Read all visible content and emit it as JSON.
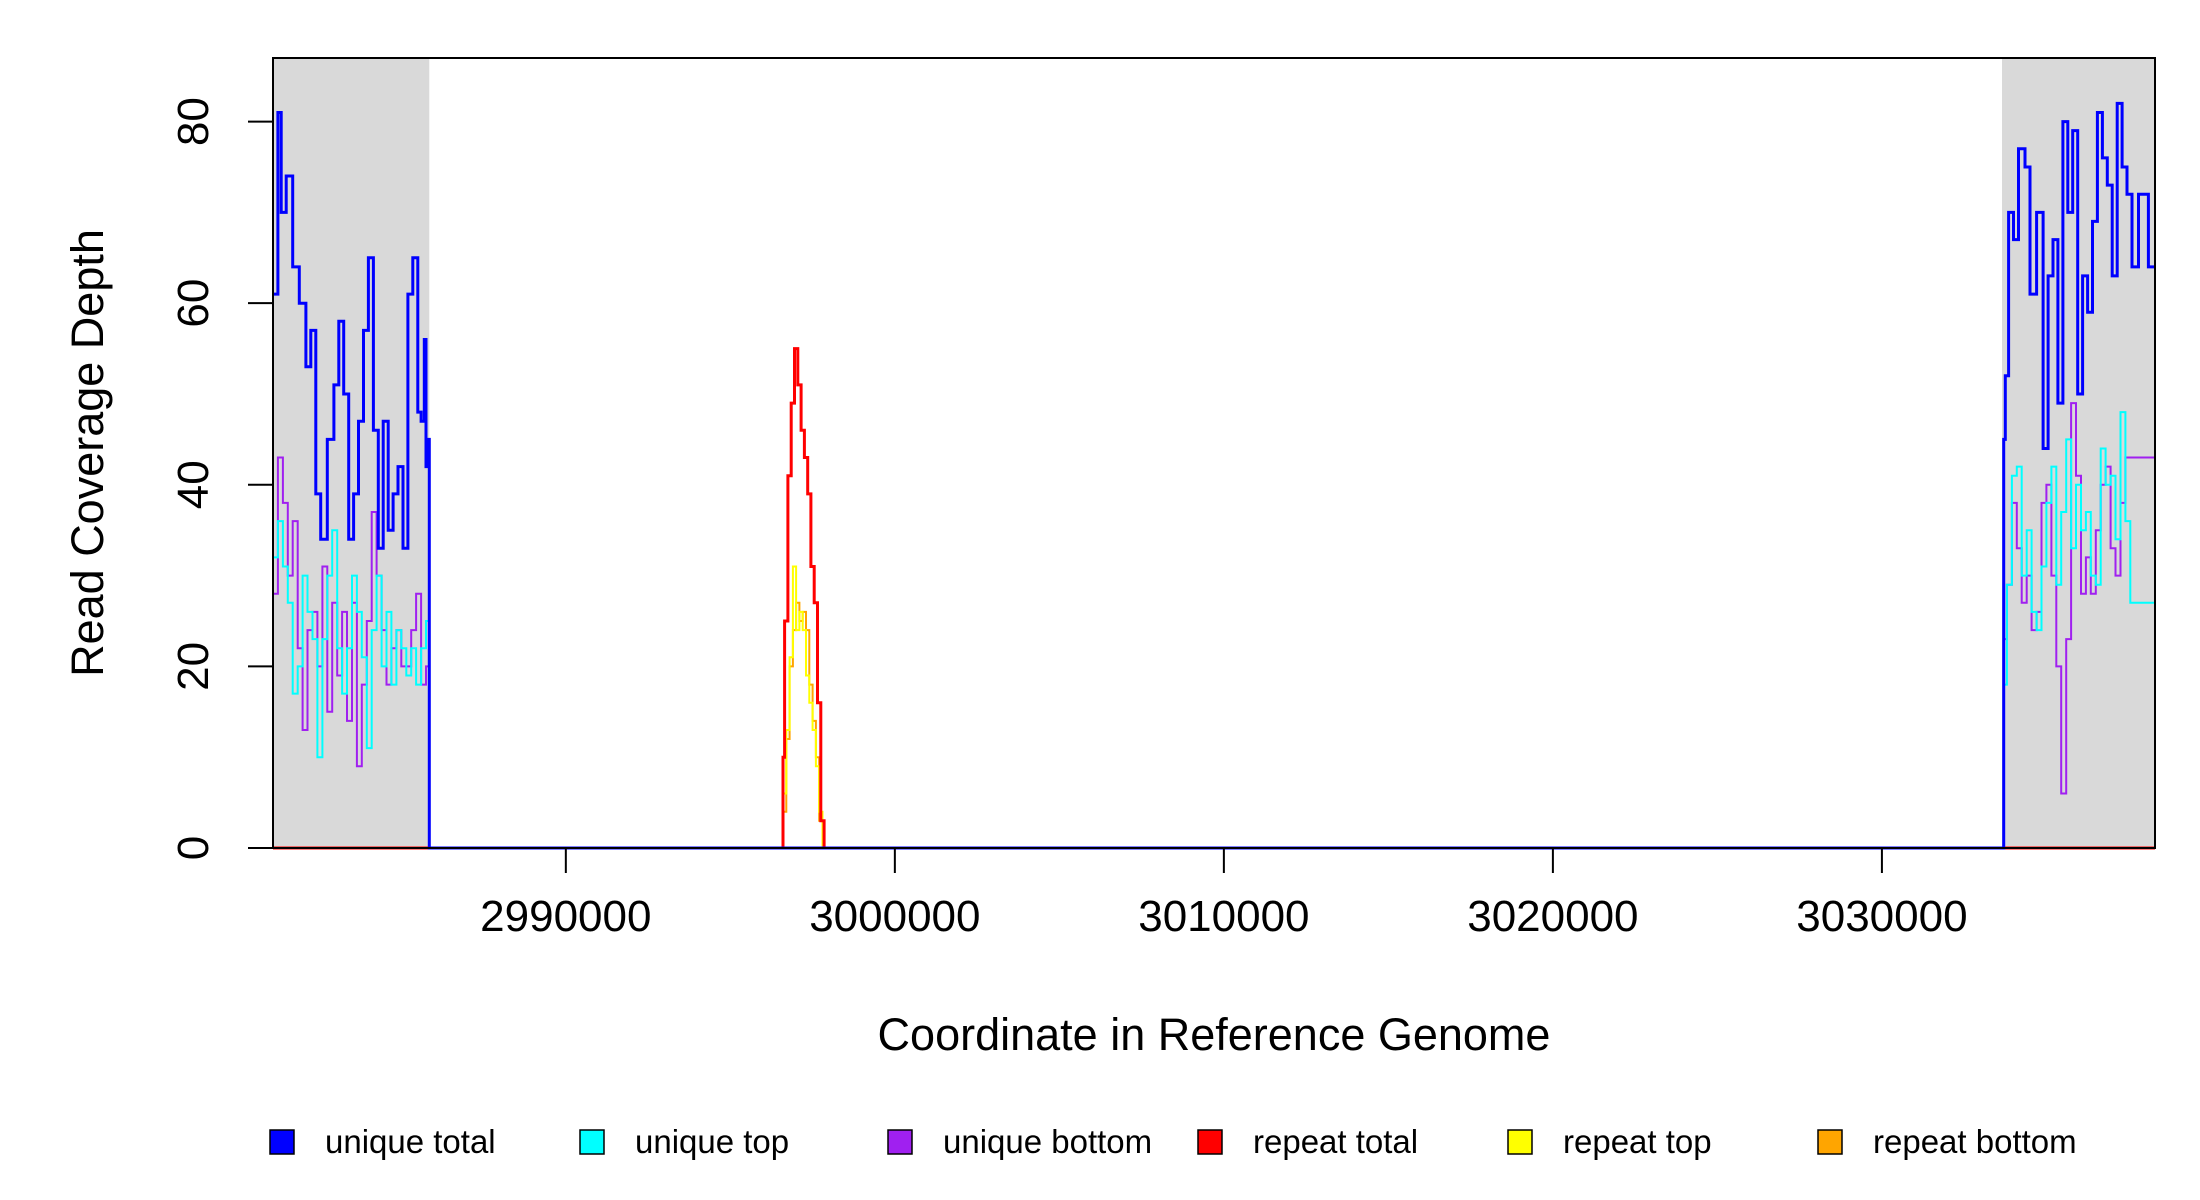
{
  "chart_data": {
    "type": "line",
    "step": true,
    "xlabel": "Coordinate in Reference Genome",
    "ylabel": "Read Coverage Depth",
    "xlim": [
      2981100,
      3038300
    ],
    "ylim": [
      0,
      87
    ],
    "x_ticks": [
      2990000,
      3000000,
      3010000,
      3020000,
      3030000
    ],
    "x_tick_labels": [
      "2990000",
      "3000000",
      "3010000",
      "3020000",
      "3030000"
    ],
    "y_ticks": [
      0,
      20,
      40,
      60,
      80
    ],
    "y_tick_labels": [
      "0",
      "20",
      "40",
      "60",
      "80"
    ],
    "shaded_regions": [
      {
        "from": 2981100,
        "to": 2985850,
        "color": "#d9d9d9"
      },
      {
        "from": 3033650,
        "to": 3038300,
        "color": "#d9d9d9"
      }
    ],
    "legend_position": "bottom",
    "series": [
      {
        "name": "unique total",
        "color": "#0000ff",
        "width": 3,
        "x": [
          2981100,
          2981250,
          2981350,
          2981500,
          2981700,
          2981900,
          2982100,
          2982250,
          2982400,
          2982550,
          2982750,
          2982950,
          2983100,
          2983250,
          2983400,
          2983550,
          2983700,
          2983850,
          2984000,
          2984150,
          2984300,
          2984450,
          2984600,
          2984750,
          2984900,
          2985050,
          2985200,
          2985350,
          2985500,
          2985600,
          2985700,
          2985750,
          2985800,
          2985850,
          3033650,
          3033700,
          3033750,
          3033850,
          3034000,
          3034150,
          3034350,
          3034500,
          3034700,
          3034900,
          3035050,
          3035200,
          3035350,
          3035500,
          3035650,
          3035800,
          3035950,
          3036100,
          3036250,
          3036400,
          3036550,
          3036700,
          3036850,
          3037000,
          3037150,
          3037300,
          3037450,
          3037600,
          3037800,
          3037950,
          3038100,
          3038300
        ],
        "y": [
          61,
          81,
          70,
          74,
          64,
          60,
          53,
          57,
          39,
          34,
          45,
          51,
          58,
          50,
          34,
          39,
          47,
          57,
          65,
          46,
          33,
          47,
          35,
          39,
          42,
          33,
          61,
          65,
          48,
          47,
          56,
          42,
          45,
          0,
          0,
          45,
          52,
          70,
          67,
          77,
          75,
          61,
          70,
          44,
          63,
          67,
          49,
          80,
          70,
          79,
          50,
          63,
          59,
          69,
          81,
          76,
          73,
          63,
          82,
          75,
          72,
          64,
          72,
          72,
          64,
          64
        ]
      },
      {
        "name": "unique top",
        "color": "#00ffff",
        "width": 2,
        "x": [
          2981100,
          2981250,
          2981400,
          2981550,
          2981700,
          2981850,
          2982000,
          2982150,
          2982300,
          2982450,
          2982600,
          2982750,
          2982900,
          2983050,
          2983200,
          2983350,
          2983500,
          2983650,
          2983800,
          2983950,
          2984100,
          2984250,
          2984400,
          2984550,
          2984700,
          2984850,
          2985000,
          2985150,
          2985300,
          2985450,
          2985600,
          2985750,
          2985850,
          3033650,
          3033700,
          3033800,
          3033950,
          3034100,
          3034250,
          3034400,
          3034550,
          3034700,
          3034850,
          3035000,
          3035150,
          3035300,
          3035450,
          3035600,
          3035750,
          3035900,
          3036050,
          3036200,
          3036350,
          3036500,
          3036650,
          3036800,
          3036950,
          3037100,
          3037250,
          3037400,
          3037550,
          3037700,
          3037850,
          3038000,
          3038300
        ],
        "y": [
          32,
          36,
          31,
          27,
          17,
          20,
          30,
          26,
          23,
          10,
          23,
          30,
          35,
          22,
          17,
          22,
          30,
          26,
          21,
          11,
          24,
          30,
          20,
          26,
          18,
          24,
          22,
          19,
          22,
          18,
          22,
          25,
          0,
          0,
          18,
          29,
          41,
          42,
          30,
          35,
          26,
          24,
          31,
          38,
          42,
          29,
          37,
          45,
          33,
          40,
          35,
          37,
          30,
          29,
          44,
          40,
          41,
          34,
          48,
          36,
          27,
          27,
          27,
          27,
          27
        ]
      },
      {
        "name": "unique bottom",
        "color": "#a020f0",
        "width": 2,
        "x": [
          2981100,
          2981250,
          2981400,
          2981550,
          2981700,
          2981850,
          2982000,
          2982150,
          2982300,
          2982450,
          2982600,
          2982750,
          2982900,
          2983050,
          2983200,
          2983350,
          2983500,
          2983650,
          2983800,
          2983950,
          2984100,
          2984250,
          2984400,
          2984550,
          2984700,
          2984850,
          2985000,
          2985150,
          2985300,
          2985450,
          2985600,
          2985750,
          2985850,
          3033650,
          3033700,
          3033800,
          3033950,
          3034100,
          3034250,
          3034400,
          3034550,
          3034700,
          3034850,
          3035000,
          3035150,
          3035300,
          3035450,
          3035600,
          3035750,
          3035900,
          3036050,
          3036200,
          3036350,
          3036500,
          3036650,
          3036800,
          3036950,
          3037100,
          3037250,
          3037400,
          3037550,
          3037700,
          3037850,
          3038000,
          3038300
        ],
        "y": [
          28,
          43,
          38,
          30,
          36,
          22,
          13,
          24,
          26,
          20,
          31,
          15,
          27,
          19,
          26,
          14,
          27,
          9,
          18,
          25,
          37,
          30,
          24,
          18,
          22,
          24,
          20,
          20,
          24,
          28,
          18,
          20,
          0,
          0,
          23,
          29,
          38,
          33,
          27,
          30,
          24,
          26,
          38,
          40,
          30,
          20,
          6,
          23,
          49,
          41,
          28,
          32,
          28,
          35,
          40,
          42,
          33,
          30,
          38,
          43,
          43,
          43,
          43,
          43,
          43
        ]
      },
      {
        "name": "repeat total",
        "color": "#ff0000",
        "width": 3,
        "x": [
          2981100,
          2996600,
          2996650,
          2996750,
          2996850,
          2996950,
          2997050,
          2997150,
          2997250,
          2997350,
          2997450,
          2997550,
          2997650,
          2997750,
          2997850,
          3038300
        ],
        "y": [
          0,
          10,
          25,
          41,
          49,
          55,
          51,
          46,
          43,
          39,
          31,
          27,
          16,
          3,
          0,
          0
        ]
      },
      {
        "name": "repeat top",
        "color": "#ffff00",
        "width": 2,
        "x": [
          2981100,
          2996600,
          2996700,
          2996800,
          2996900,
          2997000,
          2997100,
          2997200,
          2997300,
          2997400,
          2997500,
          2997600,
          2997700,
          2997800,
          3038300
        ],
        "y": [
          0,
          6,
          13,
          21,
          31,
          24,
          26,
          24,
          19,
          16,
          13,
          9,
          4,
          0,
          0
        ]
      },
      {
        "name": "repeat bottom",
        "color": "#ffa500",
        "width": 2,
        "x": [
          2981100,
          2996600,
          2996700,
          2996800,
          2996900,
          2997000,
          2997100,
          2997200,
          2997300,
          2997400,
          2997500,
          2997600,
          2997700,
          2997800,
          3038300
        ],
        "y": [
          0,
          4,
          12,
          20,
          24,
          27,
          25,
          26,
          24,
          18,
          14,
          10,
          3,
          0,
          0
        ]
      }
    ]
  }
}
